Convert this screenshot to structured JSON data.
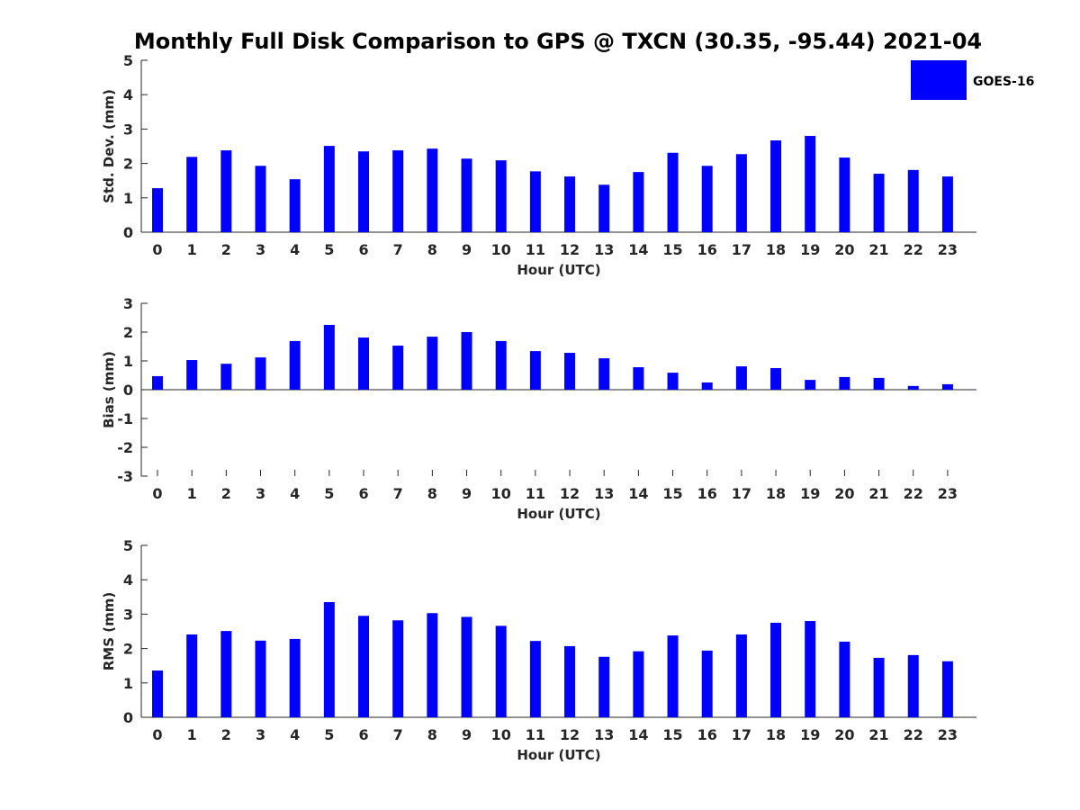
{
  "title": "Monthly Full Disk Comparison to GPS @ TXCN (30.35, -95.44) 2021-04",
  "legend": {
    "label": "GOES-16"
  },
  "bar_color": "#0000ff",
  "chart_data": [
    {
      "type": "bar",
      "name": "stddev",
      "xlabel": "Hour (UTC)",
      "ylabel": "Std. Dev. (mm)",
      "ylim": [
        0,
        5
      ],
      "yticks": [
        0,
        1,
        2,
        3,
        4,
        5
      ],
      "categories": [
        "0",
        "1",
        "2",
        "3",
        "4",
        "5",
        "6",
        "7",
        "8",
        "9",
        "10",
        "11",
        "12",
        "13",
        "14",
        "15",
        "16",
        "17",
        "18",
        "19",
        "20",
        "21",
        "22",
        "23"
      ],
      "values": [
        1.28,
        2.19,
        2.38,
        1.93,
        1.54,
        2.51,
        2.35,
        2.38,
        2.43,
        2.14,
        2.09,
        1.77,
        1.62,
        1.38,
        1.75,
        2.31,
        1.93,
        2.27,
        2.67,
        2.8,
        2.17,
        1.7,
        1.81,
        1.62
      ]
    },
    {
      "type": "bar",
      "name": "bias",
      "xlabel": "Hour (UTC)",
      "ylabel": "Bias (mm)",
      "ylim": [
        -3,
        3
      ],
      "yticks": [
        -3,
        -2,
        -1,
        0,
        1,
        2,
        3
      ],
      "categories": [
        "0",
        "1",
        "2",
        "3",
        "4",
        "5",
        "6",
        "7",
        "8",
        "9",
        "10",
        "11",
        "12",
        "13",
        "14",
        "15",
        "16",
        "17",
        "18",
        "19",
        "20",
        "21",
        "22",
        "23"
      ],
      "values": [
        0.47,
        1.03,
        0.9,
        1.12,
        1.69,
        2.25,
        1.81,
        1.53,
        1.84,
        2.0,
        1.69,
        1.34,
        1.28,
        1.09,
        0.78,
        0.59,
        0.25,
        0.81,
        0.75,
        0.34,
        0.44,
        0.41,
        0.13,
        0.19
      ]
    },
    {
      "type": "bar",
      "name": "rms",
      "xlabel": "Hour (UTC)",
      "ylabel": "RMS (mm)",
      "ylim": [
        0,
        5
      ],
      "yticks": [
        0,
        1,
        2,
        3,
        4,
        5
      ],
      "categories": [
        "0",
        "1",
        "2",
        "3",
        "4",
        "5",
        "6",
        "7",
        "8",
        "9",
        "10",
        "11",
        "12",
        "13",
        "14",
        "15",
        "16",
        "17",
        "18",
        "19",
        "20",
        "21",
        "22",
        "23"
      ],
      "values": [
        1.36,
        2.41,
        2.51,
        2.23,
        2.28,
        3.35,
        2.95,
        2.82,
        3.03,
        2.92,
        2.66,
        2.22,
        2.07,
        1.76,
        1.92,
        2.38,
        1.94,
        2.41,
        2.75,
        2.8,
        2.2,
        1.73,
        1.81,
        1.63
      ]
    }
  ]
}
